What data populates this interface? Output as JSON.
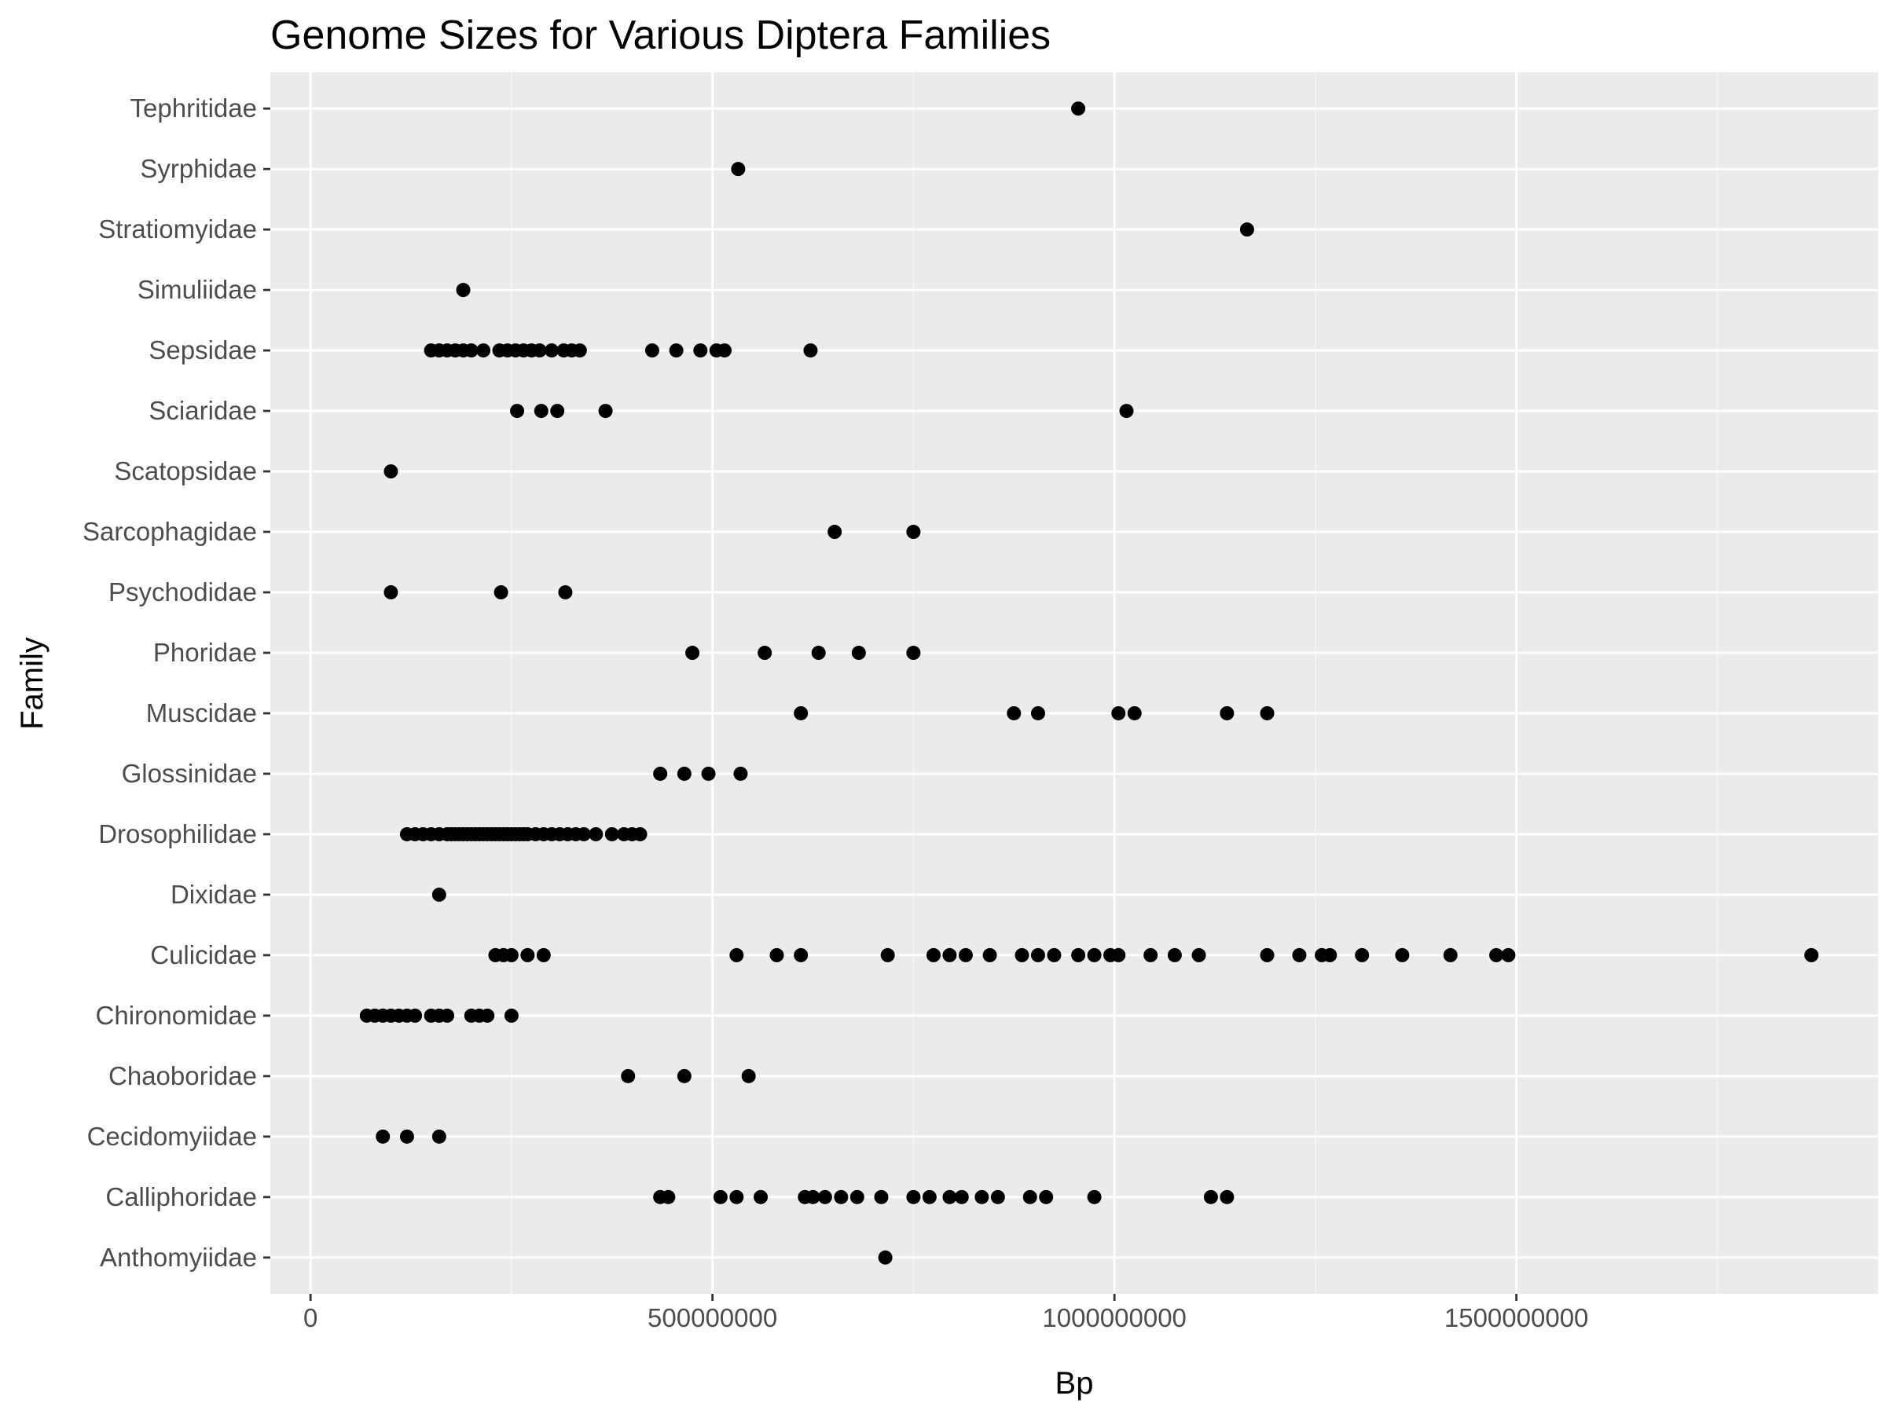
{
  "chart_data": {
    "type": "scatter",
    "title": "Genome Sizes for Various Diptera Families",
    "xlabel": "Bp",
    "ylabel": "Family",
    "xlim": [
      -50000000,
      1950000000
    ],
    "x_ticks": [
      0,
      500000000,
      1000000000,
      1500000000
    ],
    "x_tick_labels": [
      "0",
      "500000000",
      "1000000000",
      "1500000000"
    ],
    "grid": true,
    "legend": "none",
    "colors": {
      "panel": "#ebebeb",
      "grid_major": "#ffffff",
      "point": "#000000",
      "tick_text": "#4d4d4d",
      "tick_mark": "#333333"
    },
    "categories": [
      "Anthomyiidae",
      "Calliphoridae",
      "Cecidomyiidae",
      "Chaoboridae",
      "Chironomidae",
      "Culicidae",
      "Dixidae",
      "Drosophilidae",
      "Glossinidae",
      "Muscidae",
      "Phoridae",
      "Psychodidae",
      "Sarcophagidae",
      "Scatopsidae",
      "Sciaridae",
      "Sepsidae",
      "Simuliidae",
      "Stratiomyidae",
      "Syrphidae",
      "Tephritidae"
    ],
    "points": {
      "Anthomyiidae": [
        715000000
      ],
      "Calliphoridae": [
        435000000,
        445000000,
        510000000,
        530000000,
        560000000,
        615000000,
        625000000,
        640000000,
        660000000,
        680000000,
        710000000,
        750000000,
        770000000,
        795000000,
        810000000,
        835000000,
        855000000,
        895000000,
        915000000,
        975000000,
        1120000000,
        1140000000
      ],
      "Cecidomyiidae": [
        90000000,
        120000000,
        160000000
      ],
      "Chaoboridae": [
        395000000,
        465000000,
        545000000
      ],
      "Chironomidae": [
        70000000,
        80000000,
        90000000,
        100000000,
        110000000,
        120000000,
        130000000,
        150000000,
        160000000,
        170000000,
        200000000,
        210000000,
        220000000,
        250000000
      ],
      "Culicidae": [
        230000000,
        240000000,
        250000000,
        270000000,
        290000000,
        530000000,
        580000000,
        610000000,
        718000000,
        775000000,
        795000000,
        815000000,
        845000000,
        885000000,
        905000000,
        925000000,
        955000000,
        975000000,
        995000000,
        1005000000,
        1045000000,
        1075000000,
        1105000000,
        1190000000,
        1230000000,
        1258000000,
        1268000000,
        1308000000,
        1358000000,
        1418000000,
        1475000000,
        1490000000,
        1867000000
      ],
      "Dixidae": [
        160000000
      ],
      "Drosophilidae": [
        120000000,
        130000000,
        140000000,
        150000000,
        160000000,
        170000000,
        175000000,
        180000000,
        185000000,
        190000000,
        195000000,
        200000000,
        205000000,
        210000000,
        215000000,
        220000000,
        225000000,
        230000000,
        235000000,
        240000000,
        245000000,
        250000000,
        255000000,
        260000000,
        265000000,
        270000000,
        280000000,
        290000000,
        300000000,
        310000000,
        320000000,
        330000000,
        340000000,
        355000000,
        375000000,
        390000000,
        400000000,
        410000000
      ],
      "Glossinidae": [
        435000000,
        465000000,
        495000000,
        535000000
      ],
      "Muscidae": [
        610000000,
        875000000,
        905000000,
        1005000000,
        1025000000,
        1140000000,
        1190000000
      ],
      "Phoridae": [
        475000000,
        565000000,
        632000000,
        682000000,
        750000000
      ],
      "Psychodidae": [
        100000000,
        237000000,
        317000000
      ],
      "Sarcophagidae": [
        652000000,
        750000000
      ],
      "Scatopsidae": [
        100000000
      ],
      "Sciaridae": [
        257000000,
        287000000,
        307000000,
        367000000,
        1015000000
      ],
      "Sepsidae": [
        150000000,
        160000000,
        170000000,
        180000000,
        190000000,
        200000000,
        215000000,
        235000000,
        245000000,
        255000000,
        265000000,
        275000000,
        285000000,
        300000000,
        315000000,
        325000000,
        335000000,
        425000000,
        455000000,
        485000000,
        505000000,
        515000000,
        622000000
      ],
      "Simuliidae": [
        190000000
      ],
      "Stratiomyidae": [
        1165000000
      ],
      "Syrphidae": [
        532000000
      ],
      "Tephritidae": [
        955000000
      ]
    }
  }
}
